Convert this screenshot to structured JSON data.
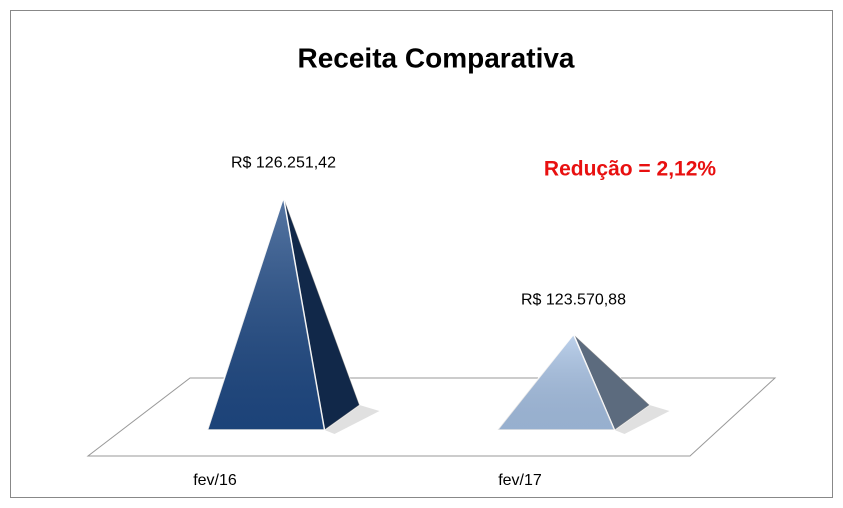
{
  "chart_data": {
    "type": "pyramid",
    "title": "Receita Comparativa",
    "categories": [
      "fev/16",
      "fev/17"
    ],
    "values": [
      126251.42,
      123570.88
    ],
    "value_labels": [
      "R$ 126.251,42",
      "R$ 123.570,88"
    ],
    "colors": [
      "#1f4a86",
      "#a8c3e6"
    ],
    "annotation": "Redução = 2,12%",
    "ylim": [
      121700,
      127000
    ]
  }
}
